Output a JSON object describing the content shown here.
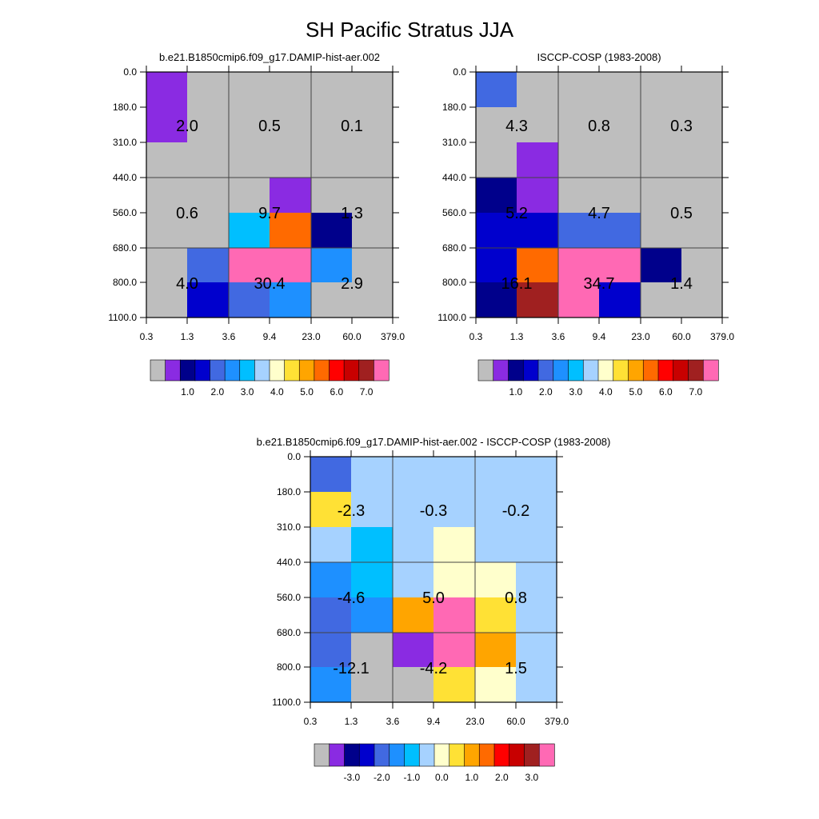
{
  "page": {
    "title": "SH Pacific Stratus JJA"
  },
  "colors": {
    "abs_scale": [
      "#bebebe",
      "#8a2be2",
      "#00008b",
      "#0000cd",
      "#4169e1",
      "#1e90ff",
      "#00bfff",
      "#a6d2ff",
      "#ffffcc",
      "#ffe135",
      "#ffa500",
      "#ff6a00",
      "#ff0000",
      "#c80000",
      "#a02020",
      "#ff69b4"
    ],
    "diff_scale": [
      "#bebebe",
      "#8a2be2",
      "#00008b",
      "#0000cd",
      "#4169e1",
      "#1e90ff",
      "#00bfff",
      "#a6d2ff",
      "#ffffcc",
      "#ffe135",
      "#ffa500",
      "#ff6a00",
      "#ff0000",
      "#c80000",
      "#a02020",
      "#ff69b4"
    ]
  },
  "chart_data": [
    {
      "type": "heatmap",
      "title": "b.e21.B1850cmip6.f09_g17.DAMIP-hist-aer.002",
      "x_ticks": [
        "0.3",
        "1.3",
        "3.6",
        "9.4",
        "23.0",
        "60.0",
        "379.0"
      ],
      "y_ticks": [
        "0.0",
        "180.0",
        "310.0",
        "440.0",
        "560.0",
        "680.0",
        "800.0",
        "1100.0"
      ],
      "grid": true,
      "cells": [
        [
          "purple",
          "gray",
          "gray",
          "gray",
          "gray",
          "gray"
        ],
        [
          "purple",
          "gray",
          "gray",
          "gray",
          "gray",
          "gray"
        ],
        [
          "gray",
          "gray",
          "gray",
          "gray",
          "gray",
          "gray"
        ],
        [
          "gray",
          "gray",
          "gray",
          "purple",
          "gray",
          "gray"
        ],
        [
          "gray",
          "gray",
          "deepskyblue",
          "darkorange",
          "navy",
          "gray"
        ],
        [
          "gray",
          "royalblue",
          "hotpink",
          "hotpink",
          "dodgerblue",
          "gray"
        ],
        [
          "gray",
          "mediumblue",
          "royalblue",
          "dodgerblue",
          "gray",
          "gray"
        ]
      ],
      "block_values": [
        [
          "2.0",
          "0.5",
          "0.1"
        ],
        [
          "0.6",
          "9.7",
          "1.3"
        ],
        [
          "4.0",
          "30.4",
          "2.9"
        ]
      ],
      "colorbar_labels": [
        "1.0",
        "2.0",
        "3.0",
        "4.0",
        "5.0",
        "6.0",
        "7.0"
      ]
    },
    {
      "type": "heatmap",
      "title": "ISCCP-COSP (1983-2008)",
      "x_ticks": [
        "0.3",
        "1.3",
        "3.6",
        "9.4",
        "23.0",
        "60.0",
        "379.0"
      ],
      "y_ticks": [
        "0.0",
        "180.0",
        "310.0",
        "440.0",
        "560.0",
        "680.0",
        "800.0",
        "1100.0"
      ],
      "grid": true,
      "cells": [
        [
          "royalblue",
          "gray",
          "gray",
          "gray",
          "gray",
          "gray"
        ],
        [
          "gray",
          "gray",
          "gray",
          "gray",
          "gray",
          "gray"
        ],
        [
          "gray",
          "purple",
          "gray",
          "gray",
          "gray",
          "gray"
        ],
        [
          "navy",
          "purple",
          "gray",
          "gray",
          "gray",
          "gray"
        ],
        [
          "mediumblue",
          "mediumblue",
          "royalblue",
          "royalblue",
          "gray",
          "gray"
        ],
        [
          "mediumblue",
          "darkorange",
          "hotpink",
          "hotpink",
          "navy",
          "gray"
        ],
        [
          "navy",
          "brown",
          "hotpink",
          "mediumblue",
          "gray",
          "gray"
        ]
      ],
      "block_values": [
        [
          "4.3",
          "0.8",
          "0.3"
        ],
        [
          "5.2",
          "4.7",
          "0.5"
        ],
        [
          "16.1",
          "34.7",
          "1.4"
        ]
      ],
      "colorbar_labels": [
        "1.0",
        "2.0",
        "3.0",
        "4.0",
        "5.0",
        "6.0",
        "7.0"
      ]
    },
    {
      "type": "heatmap",
      "title": "b.e21.B1850cmip6.f09_g17.DAMIP-hist-aer.002 - ISCCP-COSP (1983-2008)",
      "x_ticks": [
        "0.3",
        "1.3",
        "3.6",
        "9.4",
        "23.0",
        "60.0",
        "379.0"
      ],
      "y_ticks": [
        "0.0",
        "180.0",
        "310.0",
        "440.0",
        "560.0",
        "680.0",
        "800.0",
        "1100.0"
      ],
      "grid": true,
      "cells": [
        [
          "royalblue",
          "lightblue",
          "lightblue",
          "lightblue",
          "lightblue",
          "lightblue"
        ],
        [
          "gold",
          "lightblue",
          "lightblue",
          "lightblue",
          "lightblue",
          "lightblue"
        ],
        [
          "lightblue",
          "deepskyblue",
          "lightblue",
          "lightyellow",
          "lightblue",
          "lightblue"
        ],
        [
          "dodgerblue",
          "deepskyblue",
          "lightblue",
          "lightyellow",
          "lightyellow",
          "lightblue"
        ],
        [
          "royalblue",
          "dodgerblue",
          "orange",
          "hotpink",
          "gold",
          "lightblue"
        ],
        [
          "royalblue",
          "gray",
          "purple",
          "hotpink",
          "orange",
          "lightblue"
        ],
        [
          "dodgerblue",
          "gray",
          "gray",
          "gold",
          "lightyellow",
          "lightblue"
        ]
      ],
      "block_values": [
        [
          "-2.3",
          "-0.3",
          "-0.2"
        ],
        [
          "-4.6",
          "5.0",
          "0.8"
        ],
        [
          "-12.1",
          "-4.2",
          "1.5"
        ]
      ],
      "colorbar_labels": [
        "-3.0",
        "-2.0",
        "-1.0",
        "0.0",
        "1.0",
        "2.0",
        "3.0"
      ]
    }
  ]
}
